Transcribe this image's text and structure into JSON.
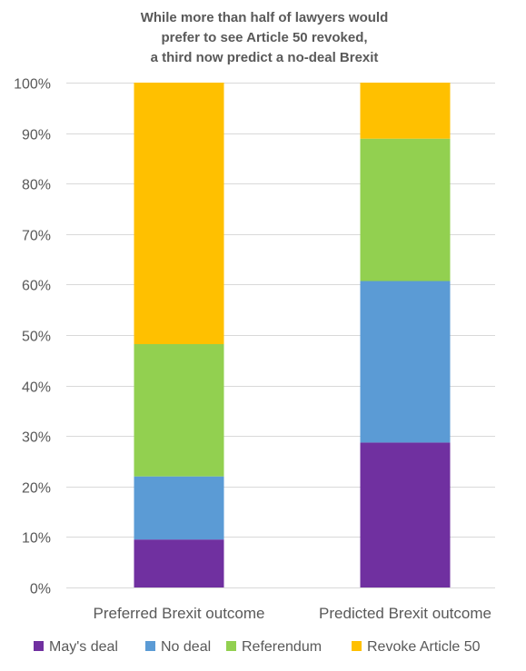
{
  "chart_data": {
    "type": "bar",
    "stacked": true,
    "percent_stacked": true,
    "title_lines": [
      "While more than half of lawyers would",
      "prefer to see Article 50 revoked,",
      "a third now predict a no-deal Brexit"
    ],
    "categories": [
      "Preferred Brexit outcome",
      "Predicted Brexit outcome"
    ],
    "series": [
      {
        "name": "May's deal",
        "color": "#7030a0",
        "values": [
          9.5,
          28.7
        ]
      },
      {
        "name": "No deal",
        "color": "#5b9bd5",
        "values": [
          12.5,
          32.0
        ]
      },
      {
        "name": "Referendum",
        "color": "#92d050",
        "values": [
          26.2,
          28.2
        ]
      },
      {
        "name": "Revoke Article 50",
        "color": "#ffc000",
        "values": [
          51.8,
          11.1
        ]
      }
    ],
    "ylim": [
      0,
      100
    ],
    "y_ticks": [
      "0%",
      "10%",
      "20%",
      "30%",
      "40%",
      "50%",
      "60%",
      "70%",
      "80%",
      "90%",
      "100%"
    ],
    "grid": true,
    "legend_position": "bottom",
    "xlabel": "",
    "ylabel": ""
  }
}
